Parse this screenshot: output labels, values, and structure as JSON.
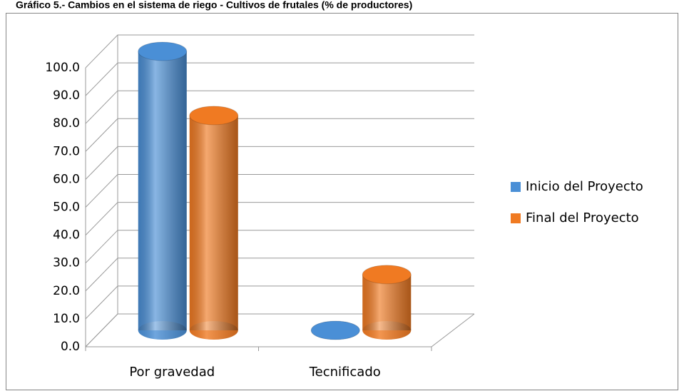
{
  "chart_data": {
    "type": "bar3d",
    "title": "Gráfico 5.- Cambios en el sistema de riego - Cultivos de frutales (% de productores)",
    "categories": [
      "Por gravedad",
      "Tecnificado"
    ],
    "series": [
      {
        "name": "Inicio del Proyecto",
        "color": "#4a8fd6",
        "values": [
          100,
          0
        ]
      },
      {
        "name": "Final del Proyecto",
        "color": "#f07a22",
        "values": [
          77,
          20
        ]
      }
    ],
    "ylim": [
      0,
      100
    ],
    "yticks": [
      {
        "value": 0,
        "label": "0.0"
      },
      {
        "value": 10,
        "label": "10.0"
      },
      {
        "value": 20,
        "label": "20.0"
      },
      {
        "value": 30,
        "label": "30.0"
      },
      {
        "value": 40,
        "label": "40.0"
      },
      {
        "value": 50,
        "label": "50.0"
      },
      {
        "value": 60,
        "label": "60.0"
      },
      {
        "value": 70,
        "label": "70.0"
      },
      {
        "value": 80,
        "label": "80.0"
      },
      {
        "value": 90,
        "label": "90.0"
      },
      {
        "value": 100,
        "label": "100.0"
      }
    ],
    "grid": true,
    "legend": "right"
  }
}
